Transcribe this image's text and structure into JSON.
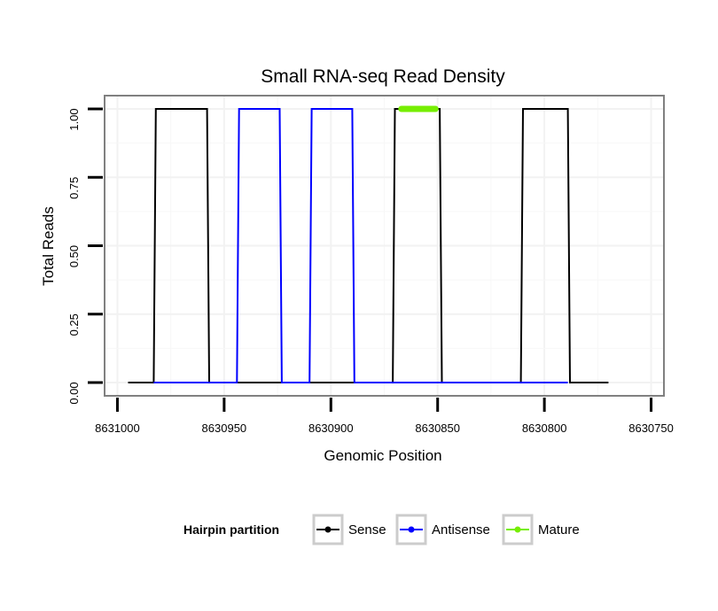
{
  "chart_data": {
    "type": "line",
    "title": "Small RNA-seq Read Density",
    "xlabel": "Genomic Position",
    "ylabel": "Total Reads",
    "xlim": [
      8631006,
      8630744
    ],
    "ylim": [
      0,
      1
    ],
    "x_reversed": true,
    "x_ticks": [
      8631000,
      8630950,
      8630900,
      8630850,
      8630800,
      8630750
    ],
    "x_tick_labels": [
      "8631000",
      "8630950",
      "8630900",
      "8630850",
      "8630800",
      "8630750"
    ],
    "y_ticks": [
      0,
      0.25,
      0.5,
      0.75,
      1
    ],
    "y_tick_labels": [
      "0.00",
      "0.25",
      "0.50",
      "0.75",
      "1.00"
    ],
    "grid": true,
    "legend": {
      "title": "Hairpin partition",
      "placement": "bottom",
      "entries": [
        {
          "label": "Sense",
          "color": "#000000"
        },
        {
          "label": "Antisense",
          "color": "#0000ff"
        },
        {
          "label": "Mature",
          "color": "#76ee00"
        }
      ]
    },
    "series": [
      {
        "name": "Sense",
        "color": "#000000",
        "x": [
          8630995,
          8630983,
          8630982,
          8630958,
          8630957,
          8630895,
          8630894,
          8630871,
          8630870,
          8630849,
          8630848,
          8630811,
          8630810,
          8630789,
          8630788,
          8630770
        ],
        "values": [
          0,
          0,
          1,
          1,
          0,
          0,
          0,
          0,
          1,
          1,
          0,
          0,
          1,
          1,
          0,
          0
        ]
      },
      {
        "name": "Antisense",
        "color": "#0000ff",
        "x": [
          8630983,
          8630944,
          8630943,
          8630924,
          8630923,
          8630910,
          8630909,
          8630890,
          8630889,
          8630870,
          8630849,
          8630811,
          8630789
        ],
        "values": [
          0,
          0,
          1,
          1,
          0,
          0,
          1,
          1,
          0,
          0,
          0,
          0,
          0
        ]
      },
      {
        "name": "Mature",
        "color": "#76ee00",
        "x": [
          8630867,
          8630851
        ],
        "values": [
          1,
          1
        ]
      }
    ]
  }
}
